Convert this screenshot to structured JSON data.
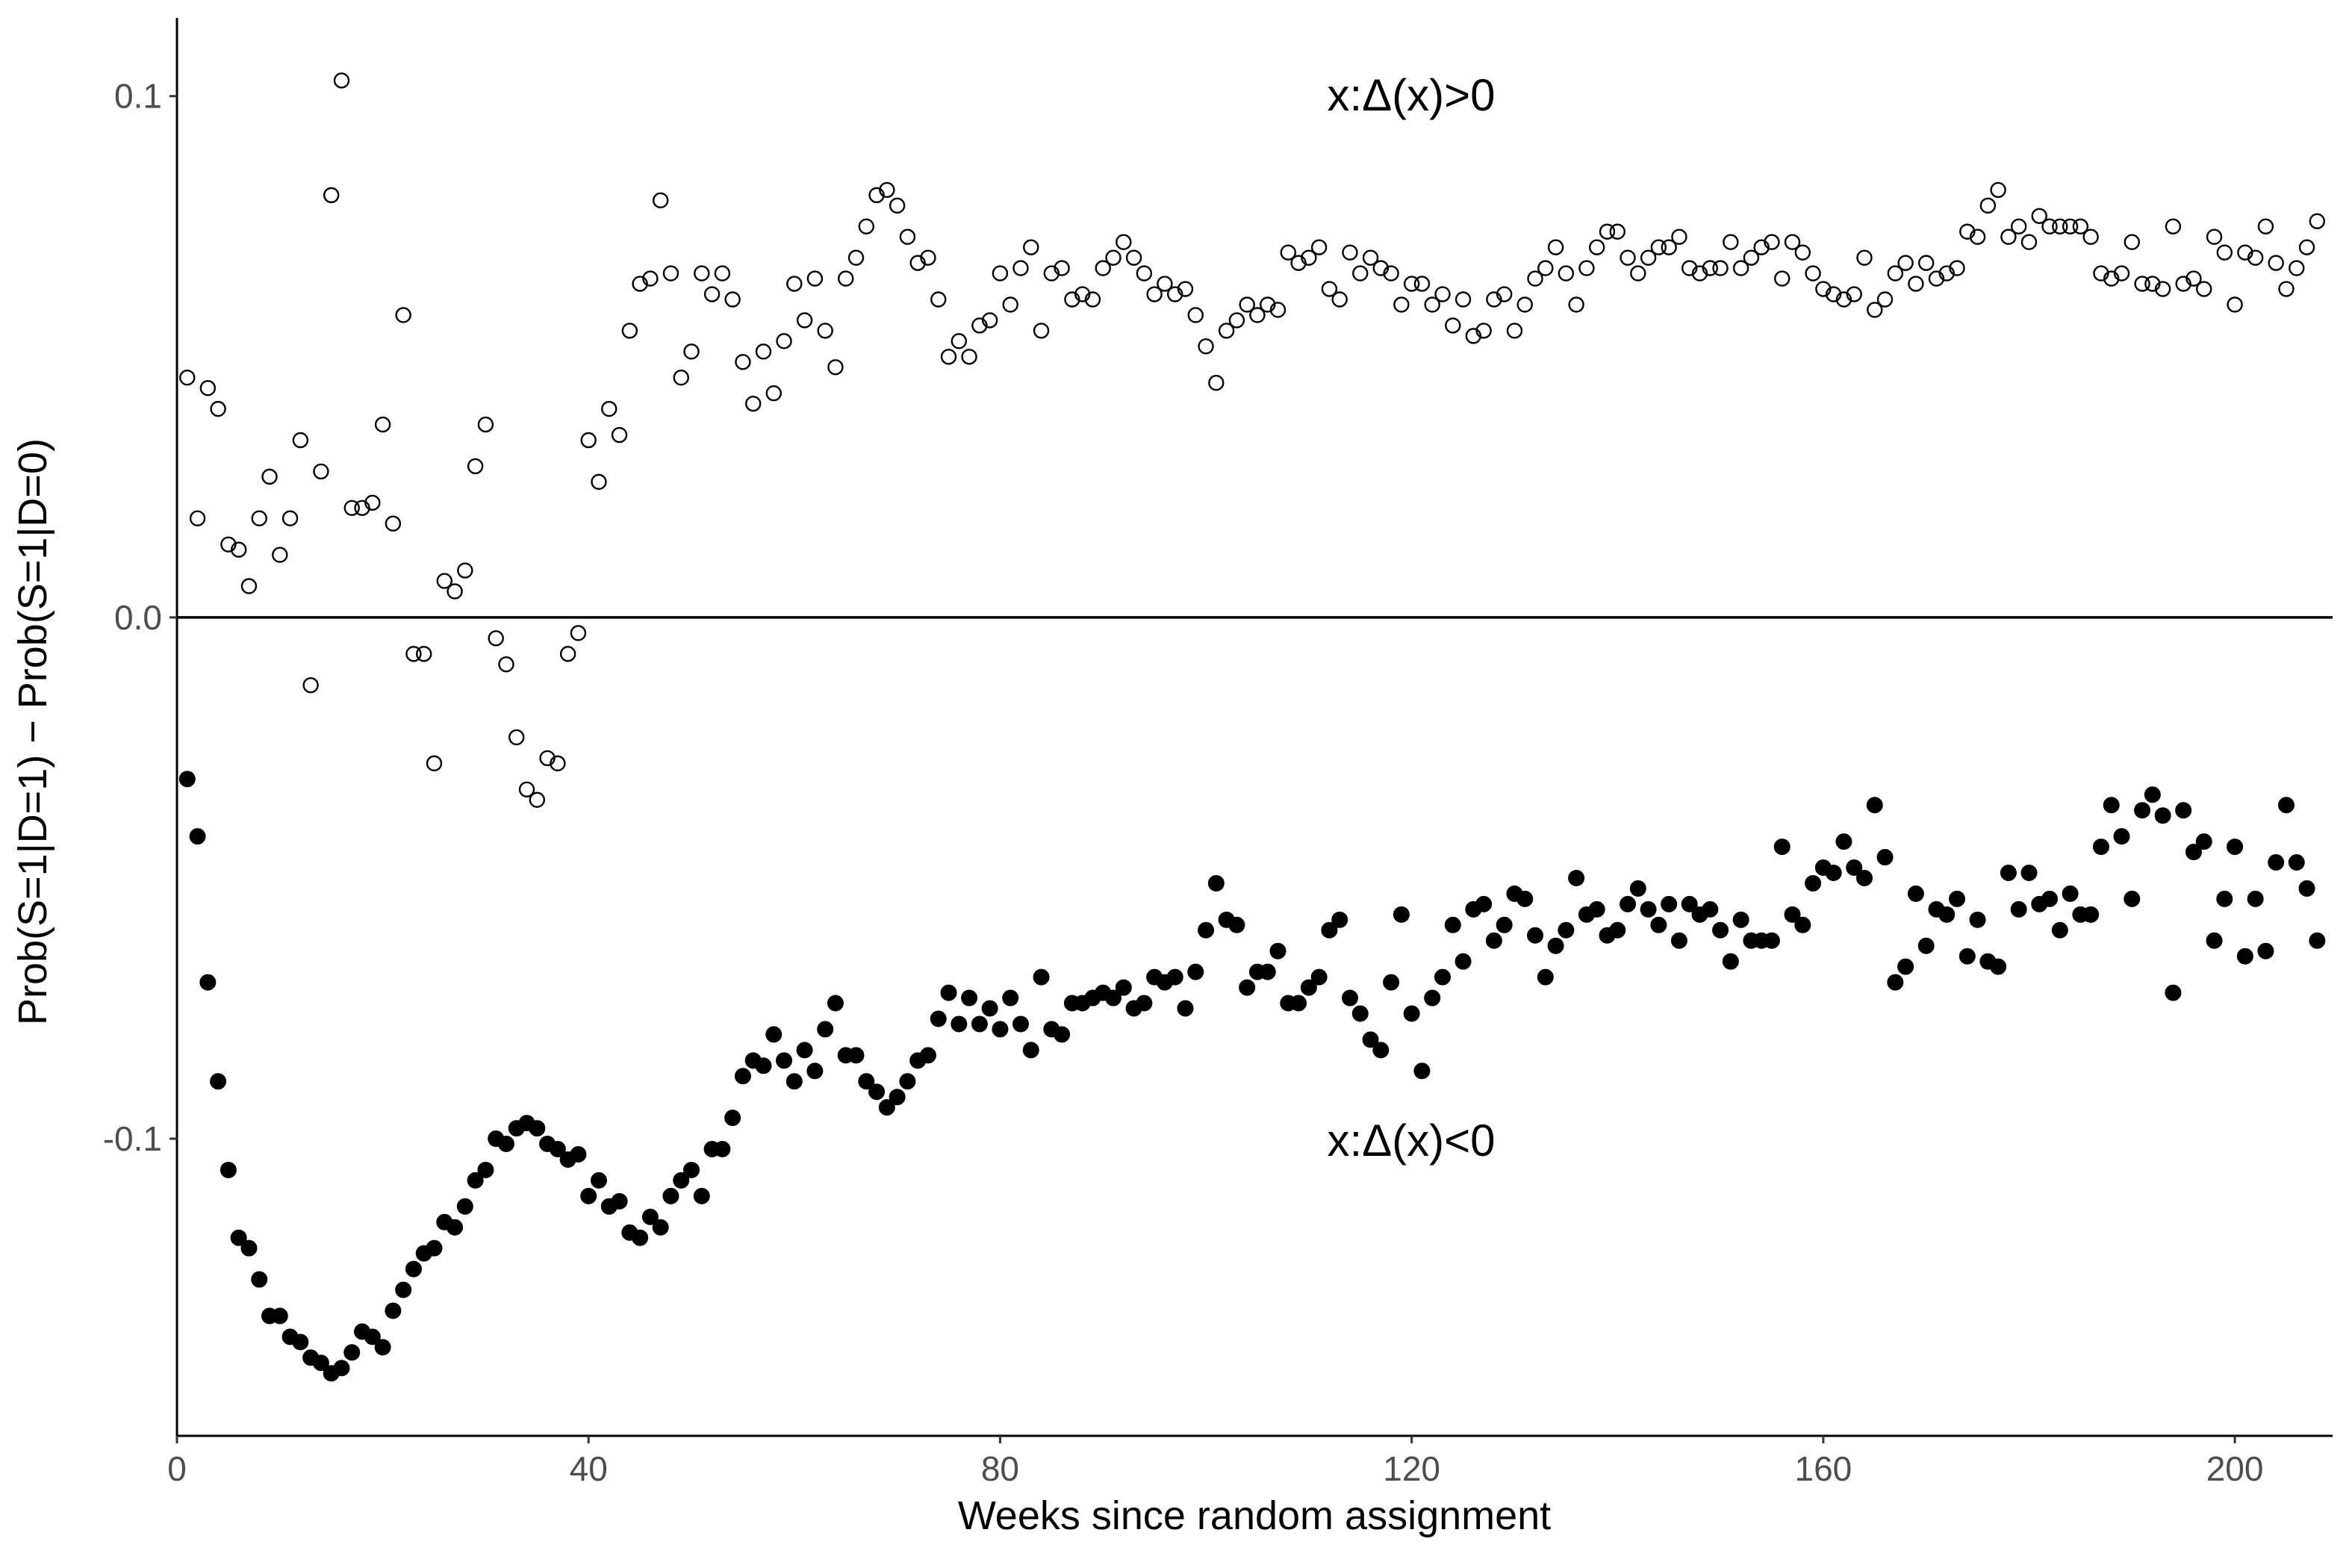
{
  "chart_data": {
    "type": "scatter",
    "x_label": "Weeks since random assignment",
    "y_label": "Prob(S=1|D=1) − Prob(S=1|D=0)",
    "annotations": [
      "x:Δ(x)>0",
      "x:Δ(x)<0"
    ],
    "xlim": [
      0,
      209.5
    ],
    "ylim": [
      -0.157,
      0.115
    ],
    "xticks": [
      0,
      40,
      80,
      120,
      160,
      200
    ],
    "yticks": [
      -0.1,
      {
        "value": 0,
        "label": "0.0"
      },
      0.1
    ],
    "hline": 0,
    "grid": false,
    "x": [
      1,
      2,
      3,
      4,
      5,
      6,
      7,
      8,
      9,
      10,
      11,
      12,
      13,
      14,
      15,
      16,
      17,
      18,
      19,
      20,
      21,
      22,
      23,
      24,
      25,
      26,
      27,
      28,
      29,
      30,
      31,
      32,
      33,
      34,
      35,
      36,
      37,
      38,
      39,
      40,
      41,
      42,
      43,
      44,
      45,
      46,
      47,
      48,
      49,
      50,
      51,
      52,
      53,
      54,
      55,
      56,
      57,
      58,
      59,
      60,
      61,
      62,
      63,
      64,
      65,
      66,
      67,
      68,
      69,
      70,
      71,
      72,
      73,
      74,
      75,
      76,
      77,
      78,
      79,
      80,
      81,
      82,
      83,
      84,
      85,
      86,
      87,
      88,
      89,
      90,
      91,
      92,
      93,
      94,
      95,
      96,
      97,
      98,
      99,
      100,
      101,
      102,
      103,
      104,
      105,
      106,
      107,
      108,
      109,
      110,
      111,
      112,
      113,
      114,
      115,
      116,
      117,
      118,
      119,
      120,
      121,
      122,
      123,
      124,
      125,
      126,
      127,
      128,
      129,
      130,
      131,
      132,
      133,
      134,
      135,
      136,
      137,
      138,
      139,
      140,
      141,
      142,
      143,
      144,
      145,
      146,
      147,
      148,
      149,
      150,
      151,
      152,
      153,
      154,
      155,
      156,
      157,
      158,
      159,
      160,
      161,
      162,
      163,
      164,
      165,
      166,
      167,
      168,
      169,
      170,
      171,
      172,
      173,
      174,
      175,
      176,
      177,
      178,
      179,
      180,
      181,
      182,
      183,
      184,
      185,
      186,
      187,
      188,
      189,
      190,
      191,
      192,
      193,
      194,
      195,
      196,
      197,
      198,
      199,
      200,
      201,
      202,
      203,
      204,
      205,
      206,
      207,
      208
    ],
    "series": [
      {
        "color": "#000000",
        "marker": "open",
        "values": [
          0.046,
          0.019,
          0.044,
          0.04,
          0.014,
          0.013,
          0.006,
          0.019,
          0.027,
          0.012,
          0.019,
          0.034,
          -0.013,
          0.028,
          0.081,
          0.103,
          0.021,
          0.021,
          0.022,
          0.037,
          0.018,
          0.058,
          -0.007,
          -0.007,
          -0.028,
          0.007,
          0.005,
          0.009,
          0.029,
          0.037,
          -0.004,
          -0.009,
          -0.023,
          -0.033,
          -0.035,
          -0.027,
          -0.028,
          -0.007,
          -0.003,
          0.034,
          0.026,
          0.04,
          0.035,
          0.055,
          0.064,
          0.065,
          0.08,
          0.066,
          0.046,
          0.051,
          0.066,
          0.062,
          0.066,
          0.061,
          0.049,
          0.041,
          0.051,
          0.043,
          0.053,
          0.064,
          0.057,
          0.065,
          0.055,
          0.048,
          0.065,
          0.069,
          0.075,
          0.081,
          0.082,
          0.079,
          0.073,
          0.068,
          0.069,
          0.061,
          0.05,
          0.053,
          0.05,
          0.056,
          0.057,
          0.066,
          0.06,
          0.067,
          0.071,
          0.055,
          0.066,
          0.067,
          0.061,
          0.062,
          0.061,
          0.067,
          0.069,
          0.072,
          0.069,
          0.066,
          0.062,
          0.064,
          0.062,
          0.063,
          0.058,
          0.052,
          0.045,
          0.055,
          0.057,
          0.06,
          0.058,
          0.06,
          0.059,
          0.07,
          0.068,
          0.069,
          0.071,
          0.063,
          0.061,
          0.07,
          0.066,
          0.069,
          0.067,
          0.066,
          0.06,
          0.064,
          0.064,
          0.06,
          0.062,
          0.056,
          0.061,
          0.054,
          0.055,
          0.061,
          0.062,
          0.055,
          0.06,
          0.065,
          0.067,
          0.071,
          0.066,
          0.06,
          0.067,
          0.071,
          0.074,
          0.074,
          0.069,
          0.066,
          0.069,
          0.071,
          0.071,
          0.073,
          0.067,
          0.066,
          0.067,
          0.067,
          0.072,
          0.067,
          0.069,
          0.071,
          0.072,
          0.065,
          0.072,
          0.07,
          0.066,
          0.063,
          0.062,
          0.061,
          0.062,
          0.069,
          0.059,
          0.061,
          0.066,
          0.068,
          0.064,
          0.068,
          0.065,
          0.066,
          0.067,
          0.074,
          0.073,
          0.079,
          0.082,
          0.073,
          0.075,
          0.072,
          0.077,
          0.075,
          0.075,
          0.075,
          0.075,
          0.073,
          0.066,
          0.065,
          0.066,
          0.072,
          0.064,
          0.064,
          0.063,
          0.075,
          0.064,
          0.065,
          0.063,
          0.073,
          0.07,
          0.06,
          0.07,
          0.069,
          0.075,
          0.068,
          0.063,
          0.067,
          0.071,
          0.076
        ]
      },
      {
        "color": "#000000",
        "marker": "filled",
        "values": [
          -0.031,
          -0.042,
          -0.07,
          -0.089,
          -0.106,
          -0.119,
          -0.121,
          -0.127,
          -0.134,
          -0.134,
          -0.138,
          -0.139,
          -0.142,
          -0.143,
          -0.145,
          -0.144,
          -0.141,
          -0.137,
          -0.138,
          -0.14,
          -0.133,
          -0.129,
          -0.125,
          -0.122,
          -0.121,
          -0.116,
          -0.117,
          -0.113,
          -0.108,
          -0.106,
          -0.1,
          -0.101,
          -0.098,
          -0.097,
          -0.098,
          -0.101,
          -0.102,
          -0.104,
          -0.103,
          -0.111,
          -0.108,
          -0.113,
          -0.112,
          -0.118,
          -0.119,
          -0.115,
          -0.117,
          -0.111,
          -0.108,
          -0.106,
          -0.111,
          -0.102,
          -0.102,
          -0.096,
          -0.088,
          -0.085,
          -0.086,
          -0.08,
          -0.085,
          -0.089,
          -0.083,
          -0.087,
          -0.079,
          -0.074,
          -0.084,
          -0.084,
          -0.089,
          -0.091,
          -0.094,
          -0.092,
          -0.089,
          -0.085,
          -0.084,
          -0.077,
          -0.072,
          -0.078,
          -0.073,
          -0.078,
          -0.075,
          -0.079,
          -0.073,
          -0.078,
          -0.083,
          -0.069,
          -0.079,
          -0.08,
          -0.074,
          -0.074,
          -0.073,
          -0.072,
          -0.073,
          -0.071,
          -0.075,
          -0.074,
          -0.069,
          -0.07,
          -0.069,
          -0.075,
          -0.068,
          -0.06,
          -0.051,
          -0.058,
          -0.059,
          -0.071,
          -0.068,
          -0.068,
          -0.064,
          -0.074,
          -0.074,
          -0.071,
          -0.069,
          -0.06,
          -0.058,
          -0.073,
          -0.076,
          -0.081,
          -0.083,
          -0.07,
          -0.057,
          -0.076,
          -0.087,
          -0.073,
          -0.069,
          -0.059,
          -0.066,
          -0.056,
          -0.055,
          -0.062,
          -0.059,
          -0.053,
          -0.054,
          -0.061,
          -0.069,
          -0.063,
          -0.06,
          -0.05,
          -0.057,
          -0.056,
          -0.061,
          -0.06,
          -0.055,
          -0.052,
          -0.056,
          -0.059,
          -0.055,
          -0.062,
          -0.055,
          -0.057,
          -0.056,
          -0.06,
          -0.066,
          -0.058,
          -0.062,
          -0.062,
          -0.062,
          -0.044,
          -0.057,
          -0.059,
          -0.051,
          -0.048,
          -0.049,
          -0.043,
          -0.048,
          -0.05,
          -0.036,
          -0.046,
          -0.07,
          -0.067,
          -0.053,
          -0.063,
          -0.056,
          -0.057,
          -0.054,
          -0.065,
          -0.058,
          -0.066,
          -0.067,
          -0.049,
          -0.056,
          -0.049,
          -0.055,
          -0.054,
          -0.06,
          -0.053,
          -0.057,
          -0.057,
          -0.044,
          -0.036,
          -0.042,
          -0.054,
          -0.037,
          -0.034,
          -0.038,
          -0.072,
          -0.037,
          -0.045,
          -0.043,
          -0.062,
          -0.054,
          -0.044,
          -0.065,
          -0.054,
          -0.064,
          -0.047,
          -0.036,
          -0.047,
          -0.052,
          -0.062
        ]
      }
    ]
  }
}
